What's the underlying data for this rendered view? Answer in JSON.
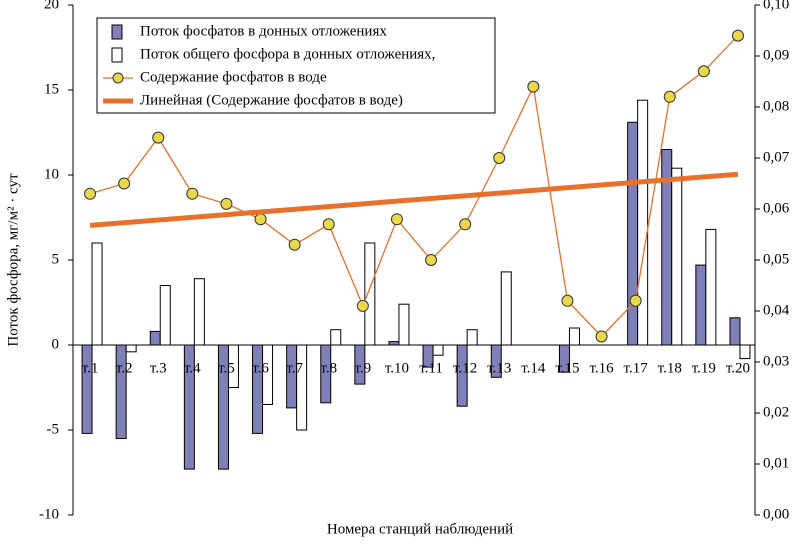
{
  "chart_data": {
    "type": "bar_line",
    "x_label": "Номера станций наблюдений",
    "y_label": "Поток фосфора, мг/м² · сут",
    "categories": [
      "т.1",
      "т.2",
      "т.3",
      "т.4",
      "т.5",
      "т.6",
      "т.7",
      "т.8",
      "т.9",
      "т.10",
      "т.11",
      "т.12",
      "т.13",
      "т.14",
      "т.15",
      "т.16",
      "т.17",
      "т.18",
      "т.19",
      "т.20"
    ],
    "series": [
      {
        "name": "Поток фосфатов в донных  отложениях",
        "color": "#8080b8",
        "kind": "bar",
        "values": [
          -5.2,
          -5.5,
          0.8,
          -7.3,
          -7.3,
          -5.2,
          -3.7,
          -3.4,
          -2.3,
          0.2,
          -1.3,
          -3.6,
          -1.9,
          0,
          -1.6,
          0,
          13.1,
          11.5,
          4.7,
          1.6
        ]
      },
      {
        "name": "Поток общего фосфора в донных  отложениях,",
        "color": "#ffffff",
        "kind": "bar",
        "values": [
          6.0,
          -0.4,
          3.5,
          3.9,
          -2.5,
          -3.5,
          -5.0,
          0.9,
          6.0,
          2.4,
          -0.6,
          0.9,
          4.3,
          0,
          1.0,
          0,
          14.4,
          10.4,
          6.8,
          -0.8
        ]
      },
      {
        "name": "Содержание  фосфатов в воде",
        "color": "#e8702a",
        "marker_color": "#e8d84a",
        "kind": "line",
        "axis": "y2",
        "values": [
          0.063,
          0.065,
          0.074,
          0.063,
          0.061,
          0.058,
          0.053,
          0.057,
          0.041,
          0.058,
          0.05,
          0.057,
          0.07,
          0.084,
          0.042,
          0.035,
          0.042,
          0.082,
          0.087,
          0.094
        ]
      }
    ],
    "trendline": {
      "name": "Линейная  (Содержание  фосфатов в воде)",
      "color": "#e8702a"
    },
    "ylim": [
      -10,
      20
    ],
    "yticks": [
      20,
      15,
      10,
      5,
      0,
      -5,
      -10
    ],
    "y2lim": [
      0,
      0.1
    ],
    "y2ticks": [
      {
        "value": 0.1,
        "label": "0,10"
      },
      {
        "value": 0.09,
        "label": "0,09"
      },
      {
        "value": 0.08,
        "label": "0,08"
      },
      {
        "value": 0.07,
        "label": "0,07"
      },
      {
        "value": 0.06,
        "label": "0,06"
      },
      {
        "value": 0.05,
        "label": "0,05"
      },
      {
        "value": 0.04,
        "label": "0,04"
      },
      {
        "value": 0.03,
        "label": "0,03"
      },
      {
        "value": 0.02,
        "label": "0,02"
      },
      {
        "value": 0.01,
        "label": "0,01"
      },
      {
        "value": 0,
        "label": "0,00"
      }
    ],
    "grid": false
  }
}
